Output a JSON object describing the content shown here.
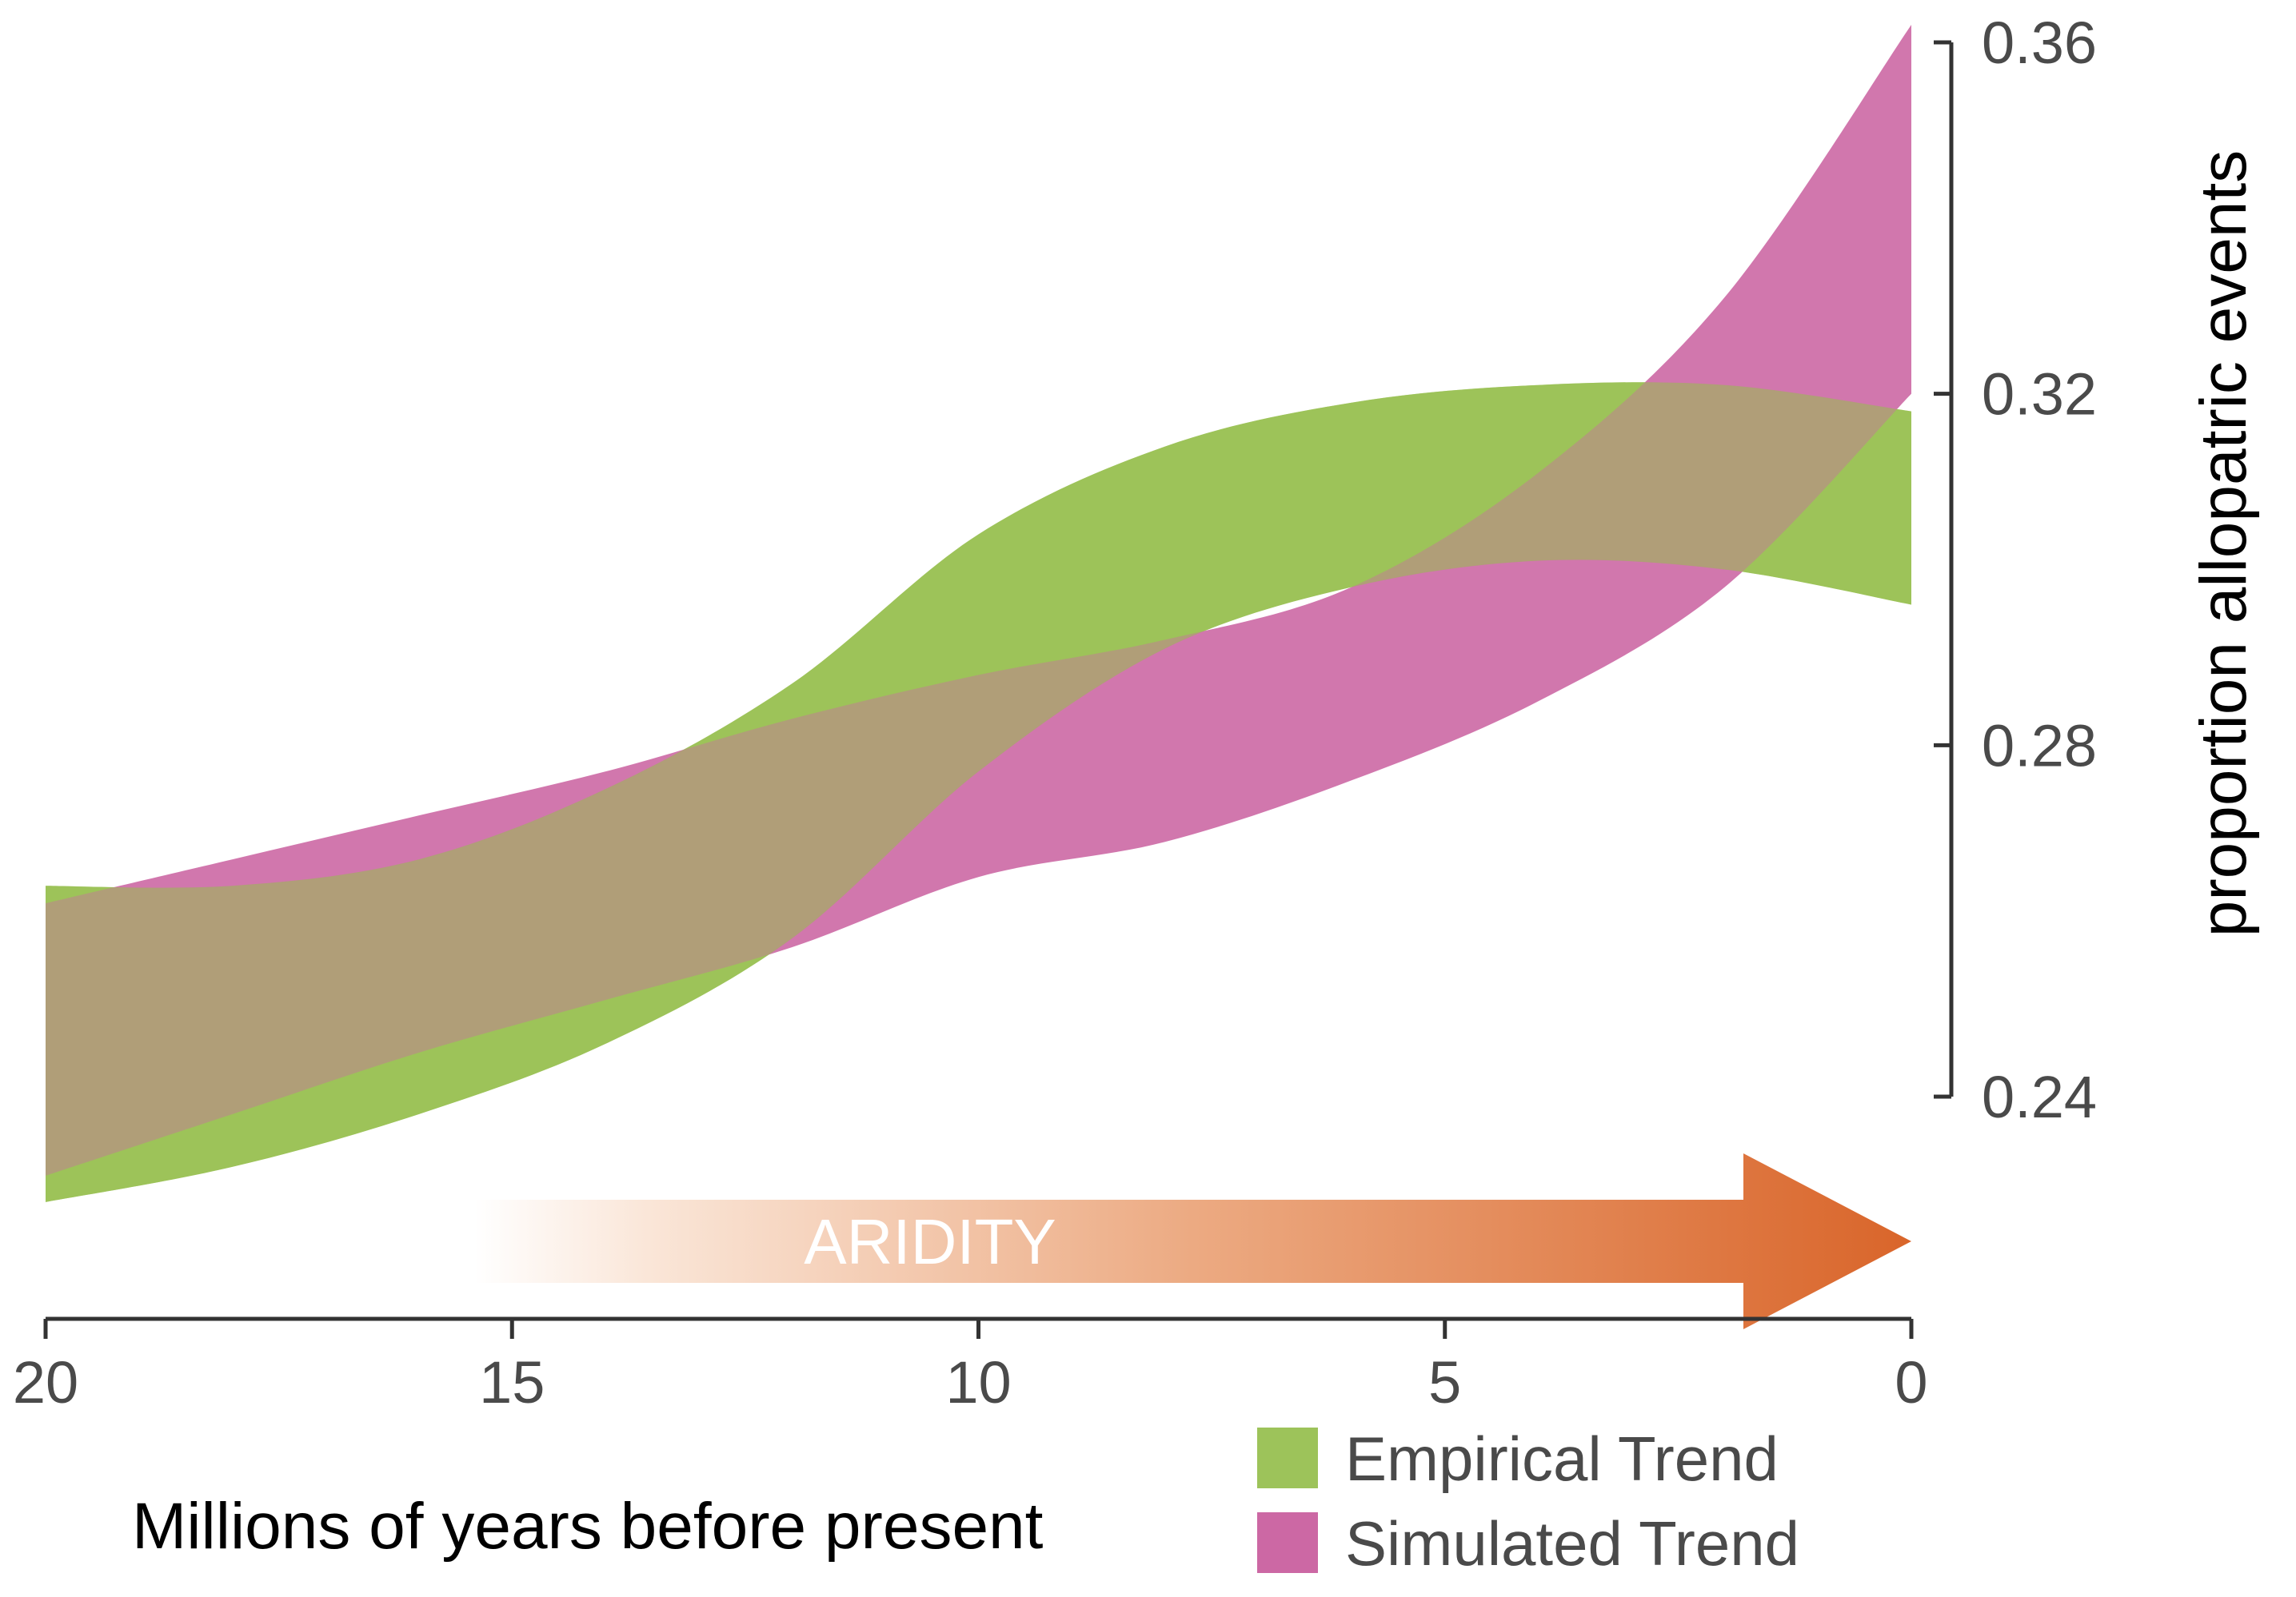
{
  "chart_data": {
    "type": "area",
    "xlabel": "Millions of years before present",
    "ylabel": "proportion allopatric events",
    "xlim": [
      20,
      0
    ],
    "ylim": [
      0.24,
      0.36
    ],
    "x_ticks": [
      "20",
      "15",
      "10",
      "5",
      "0"
    ],
    "x_tick_values": [
      20,
      15,
      10,
      5,
      0
    ],
    "y_ticks": [
      "0.24",
      "0.28",
      "0.32",
      "0.36"
    ],
    "y_tick_values": [
      0.24,
      0.28,
      0.32,
      0.36
    ],
    "legend_position": "bottom-right",
    "series": [
      {
        "name": "Empirical Trend",
        "color": "#9dc35a",
        "x": [
          20,
          18,
          16,
          14,
          12,
          10,
          8,
          6,
          4,
          2,
          0
        ],
        "lower": [
          0.228,
          0.232,
          0.238,
          0.246,
          0.258,
          0.277,
          0.291,
          0.298,
          0.301,
          0.3,
          0.296
        ],
        "upper": [
          0.264,
          0.264,
          0.267,
          0.275,
          0.287,
          0.304,
          0.314,
          0.319,
          0.321,
          0.321,
          0.318
        ]
      },
      {
        "name": "Simulated Trend",
        "color": "#cc68a4",
        "x": [
          20,
          18,
          16,
          14,
          12,
          10,
          8,
          6,
          4,
          2,
          0
        ],
        "lower": [
          0.231,
          0.238,
          0.245,
          0.251,
          0.257,
          0.265,
          0.269,
          0.276,
          0.285,
          0.298,
          0.32
        ],
        "upper": [
          0.262,
          0.267,
          0.272,
          0.277,
          0.283,
          0.288,
          0.292,
          0.298,
          0.311,
          0.331,
          0.362
        ]
      }
    ],
    "annotations": [
      {
        "text": "ARIDITY",
        "from_x": 15.4,
        "to_x": 0,
        "color_start": "#ffffff",
        "color_end": "#d9652a"
      }
    ]
  }
}
